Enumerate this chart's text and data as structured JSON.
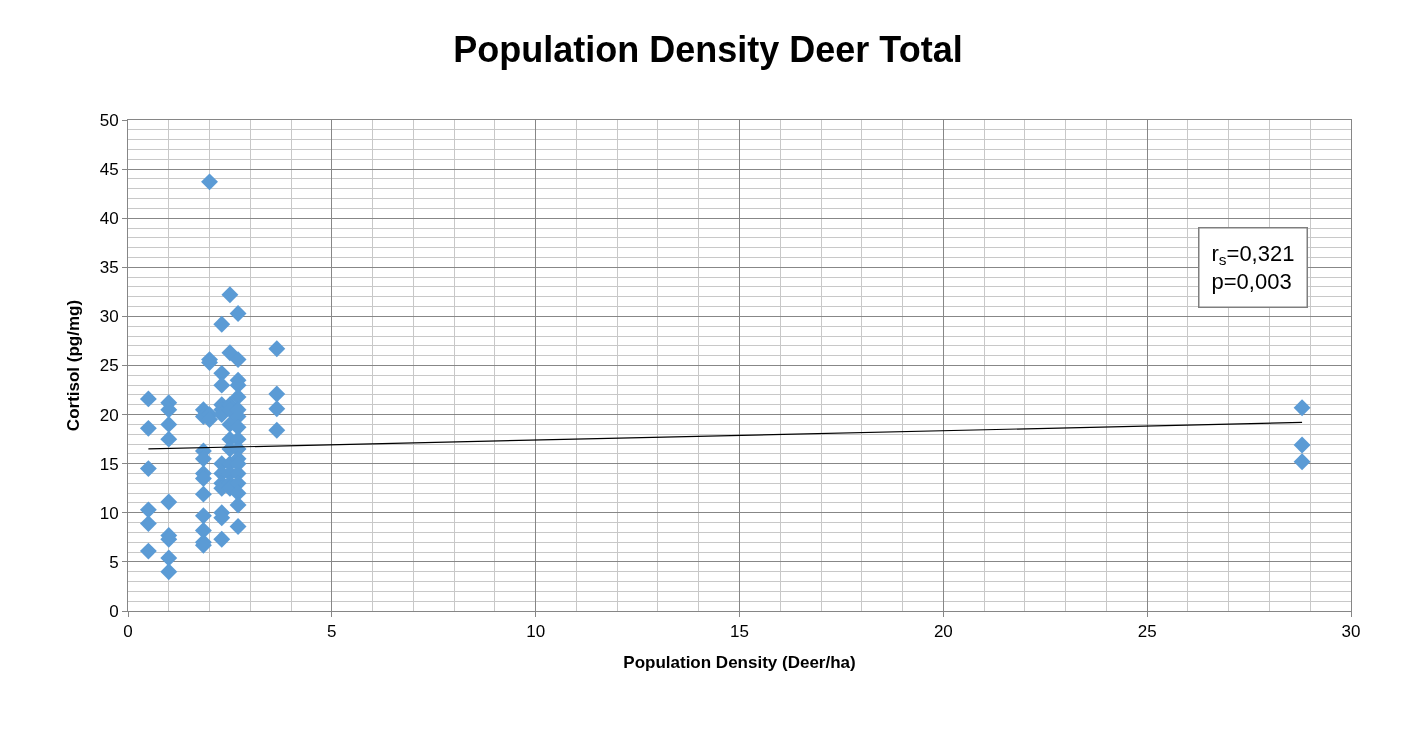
{
  "chart_data": {
    "type": "scatter",
    "title": "Population Density Deer Total",
    "xlabel": "Population Density (Deer/ha)",
    "ylabel": "Cortisol (pg/mg)",
    "xlim": [
      0,
      30
    ],
    "xticks": [
      0,
      5,
      10,
      15,
      20,
      25,
      30
    ],
    "ylim": [
      0,
      50
    ],
    "yticks": [
      0,
      5,
      10,
      15,
      20,
      25,
      30,
      35,
      40,
      45,
      50
    ],
    "grid": true,
    "legend": false,
    "marker": "diamond",
    "annotations": [
      "r$_{s}$=0,321\np=0,003"
    ],
    "series": [
      {
        "color": "#5b9bd5",
        "x": [
          0.5,
          0.5,
          0.5,
          0.5,
          0.5,
          0.5,
          1.0,
          1.0,
          1.0,
          1.0,
          1.0,
          1.0,
          1.0,
          1.0,
          1.0,
          1.85,
          1.85,
          1.85,
          1.85,
          1.85,
          1.85,
          1.85,
          1.85,
          1.85,
          1.85,
          1.85,
          2.0,
          2.0,
          2.0,
          2.0,
          2.0,
          2.3,
          2.3,
          2.3,
          2.3,
          2.3,
          2.3,
          2.3,
          2.3,
          2.3,
          2.3,
          2.3,
          2.3,
          2.3,
          2.5,
          2.5,
          2.5,
          2.5,
          2.5,
          2.5,
          2.5,
          2.5,
          2.5,
          2.5,
          2.5,
          2.7,
          2.7,
          2.7,
          2.7,
          2.7,
          2.7,
          2.7,
          2.7,
          2.7,
          2.7,
          2.7,
          2.7,
          2.7,
          2.7,
          2.7,
          2.7,
          2.7,
          3.65,
          3.65,
          3.65,
          3.65,
          28.8,
          28.8,
          28.8
        ],
        "values": [
          21.6,
          18.6,
          14.5,
          10.3,
          8.9,
          6.1,
          21.2,
          20.5,
          19.0,
          17.5,
          11.1,
          7.7,
          7.3,
          5.4,
          4.0,
          20.5,
          19.8,
          16.3,
          15.5,
          14.0,
          13.5,
          11.9,
          9.7,
          8.2,
          7.0,
          6.7,
          43.7,
          25.6,
          25.3,
          20.0,
          19.5,
          29.2,
          24.2,
          23.0,
          21.0,
          20.5,
          20.0,
          15.0,
          14.0,
          13.0,
          12.5,
          10.0,
          9.5,
          7.3,
          32.2,
          26.3,
          21.0,
          20.5,
          19.0,
          17.5,
          16.5,
          15.0,
          14.0,
          13.0,
          12.5,
          30.3,
          25.6,
          23.5,
          23.0,
          21.8,
          20.5,
          19.8,
          18.7,
          17.5,
          16.5,
          15.5,
          15.0,
          14.0,
          13.0,
          12.0,
          10.8,
          8.6,
          26.7,
          22.1,
          20.6,
          18.4,
          20.7,
          16.9,
          15.2
        ]
      },
      {
        "type": "line",
        "color": "#000000",
        "marker": "none",
        "x": [
          0.5,
          28.8
        ],
        "values": [
          16.5,
          19.2
        ]
      }
    ]
  }
}
